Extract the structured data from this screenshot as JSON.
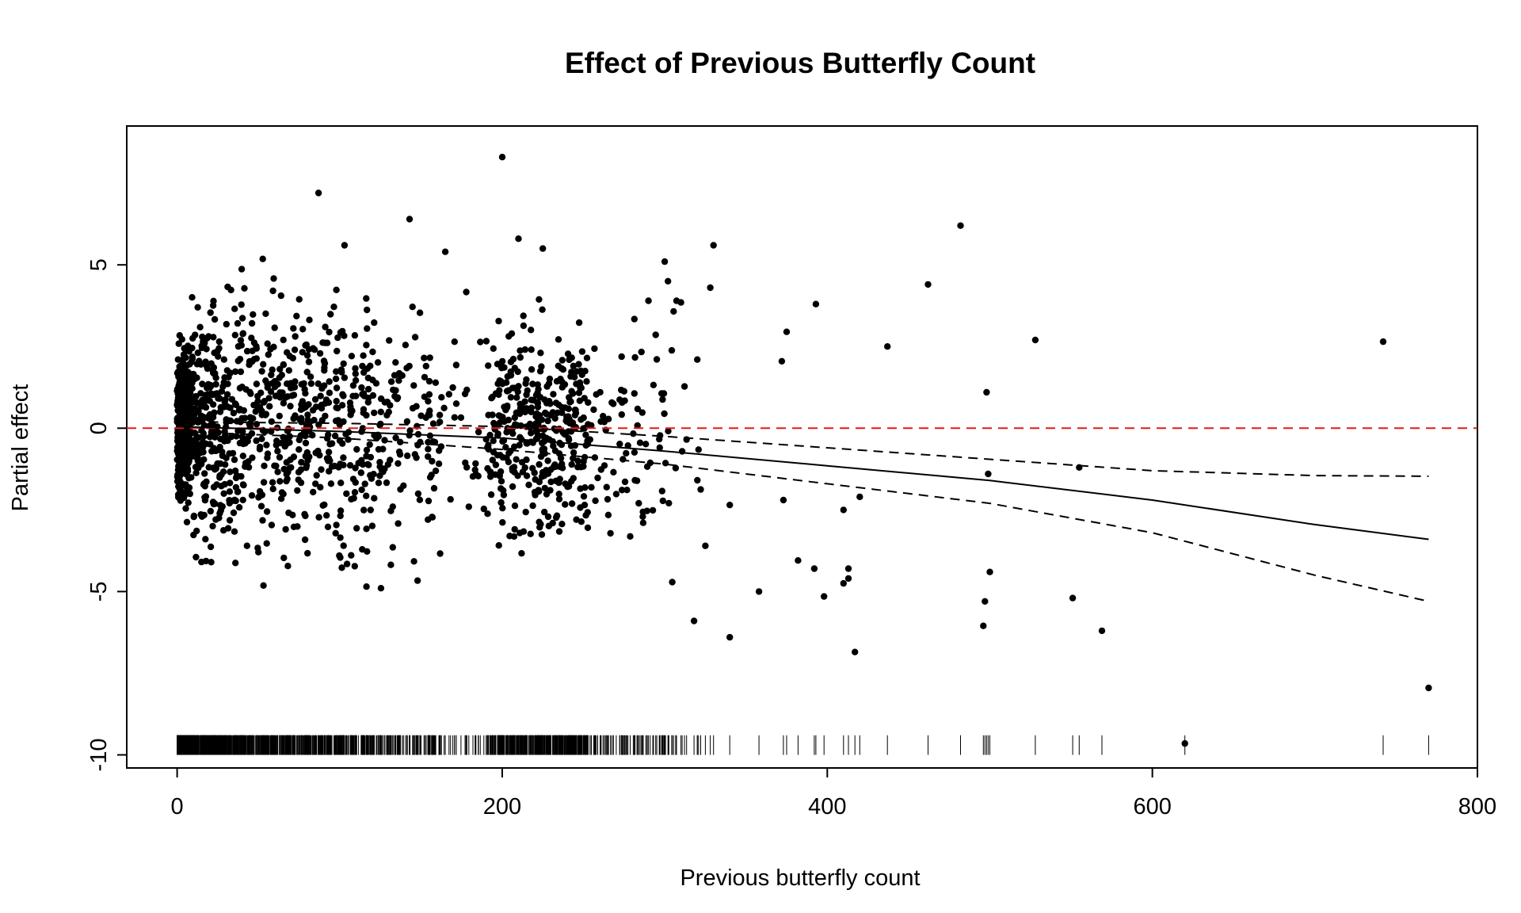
{
  "chart_data": {
    "type": "scatter",
    "title": "Effect of Previous Butterfly Count",
    "xlabel": "Previous butterfly count",
    "ylabel": "Partial effect",
    "xlim": [
      -31,
      800
    ],
    "ylim": [
      -10.4,
      9.25
    ],
    "xticks": [
      0,
      200,
      400,
      600,
      800
    ],
    "yticks": [
      -10,
      -5,
      0,
      5
    ],
    "grid": false,
    "point_color": "#000000",
    "reference_line": {
      "y": 0,
      "color": "#e41a1c",
      "style": "dashed"
    },
    "fit": {
      "x": [
        0,
        100,
        200,
        300,
        400,
        500,
        600,
        700,
        770
      ],
      "y": [
        0.05,
        -0.1,
        -0.3,
        -0.7,
        -1.15,
        -1.6,
        -2.2,
        -2.95,
        -3.4
      ]
    },
    "ci_upper": {
      "x": [
        0,
        100,
        200,
        300,
        400,
        500,
        600,
        700,
        770
      ],
      "y": [
        0.2,
        0.15,
        0.05,
        -0.25,
        -0.6,
        -0.95,
        -1.3,
        -1.45,
        -1.47
      ]
    },
    "ci_lower": {
      "x": [
        0,
        100,
        200,
        300,
        400,
        500,
        600,
        700,
        770
      ],
      "y": [
        -0.1,
        -0.3,
        -0.65,
        -1.1,
        -1.7,
        -2.3,
        -3.2,
        -4.5,
        -5.3
      ]
    },
    "outliers": [
      {
        "x": 200,
        "y": 8.3
      },
      {
        "x": 87,
        "y": 7.2
      },
      {
        "x": 143,
        "y": 6.4
      },
      {
        "x": 482,
        "y": 6.2
      },
      {
        "x": 210,
        "y": 5.8
      },
      {
        "x": 330,
        "y": 5.6
      },
      {
        "x": 103,
        "y": 5.6
      },
      {
        "x": 225,
        "y": 5.5
      },
      {
        "x": 165,
        "y": 5.4
      },
      {
        "x": 300,
        "y": 5.1
      },
      {
        "x": 462,
        "y": 4.4
      },
      {
        "x": 302,
        "y": 4.5
      },
      {
        "x": 328,
        "y": 4.3
      },
      {
        "x": 290,
        "y": 3.9
      },
      {
        "x": 310,
        "y": 3.85
      },
      {
        "x": 393,
        "y": 3.8
      },
      {
        "x": 375,
        "y": 2.95
      },
      {
        "x": 437,
        "y": 2.5
      },
      {
        "x": 528,
        "y": 2.7
      },
      {
        "x": 742,
        "y": 2.65
      },
      {
        "x": 320,
        "y": 2.1
      },
      {
        "x": 372,
        "y": 2.05
      },
      {
        "x": 498,
        "y": 1.1
      },
      {
        "x": 499,
        "y": -1.4
      },
      {
        "x": 555,
        "y": -1.2
      },
      {
        "x": 340,
        "y": -2.35
      },
      {
        "x": 373,
        "y": -2.2
      },
      {
        "x": 410,
        "y": -2.5
      },
      {
        "x": 420,
        "y": -2.1
      },
      {
        "x": 358,
        "y": -5.0
      },
      {
        "x": 382,
        "y": -4.05
      },
      {
        "x": 392,
        "y": -4.3
      },
      {
        "x": 398,
        "y": -5.15
      },
      {
        "x": 410,
        "y": -4.75
      },
      {
        "x": 413,
        "y": -4.3
      },
      {
        "x": 413,
        "y": -4.6
      },
      {
        "x": 325,
        "y": -3.6
      },
      {
        "x": 318,
        "y": -5.9
      },
      {
        "x": 340,
        "y": -6.4
      },
      {
        "x": 417,
        "y": -6.85
      },
      {
        "x": 500,
        "y": -4.4
      },
      {
        "x": 497,
        "y": -5.3
      },
      {
        "x": 496,
        "y": -6.05
      },
      {
        "x": 551,
        "y": -5.2
      },
      {
        "x": 569,
        "y": -6.2
      },
      {
        "x": 620,
        "y": -9.65
      },
      {
        "x": 770,
        "y": -7.95
      }
    ],
    "rug_x_extra": [
      340,
      358,
      373,
      375,
      382,
      392,
      393,
      398,
      410,
      413,
      417,
      420,
      437,
      462,
      482,
      496,
      497,
      498,
      499,
      500,
      528,
      551,
      555,
      569,
      620,
      742,
      770
    ]
  }
}
